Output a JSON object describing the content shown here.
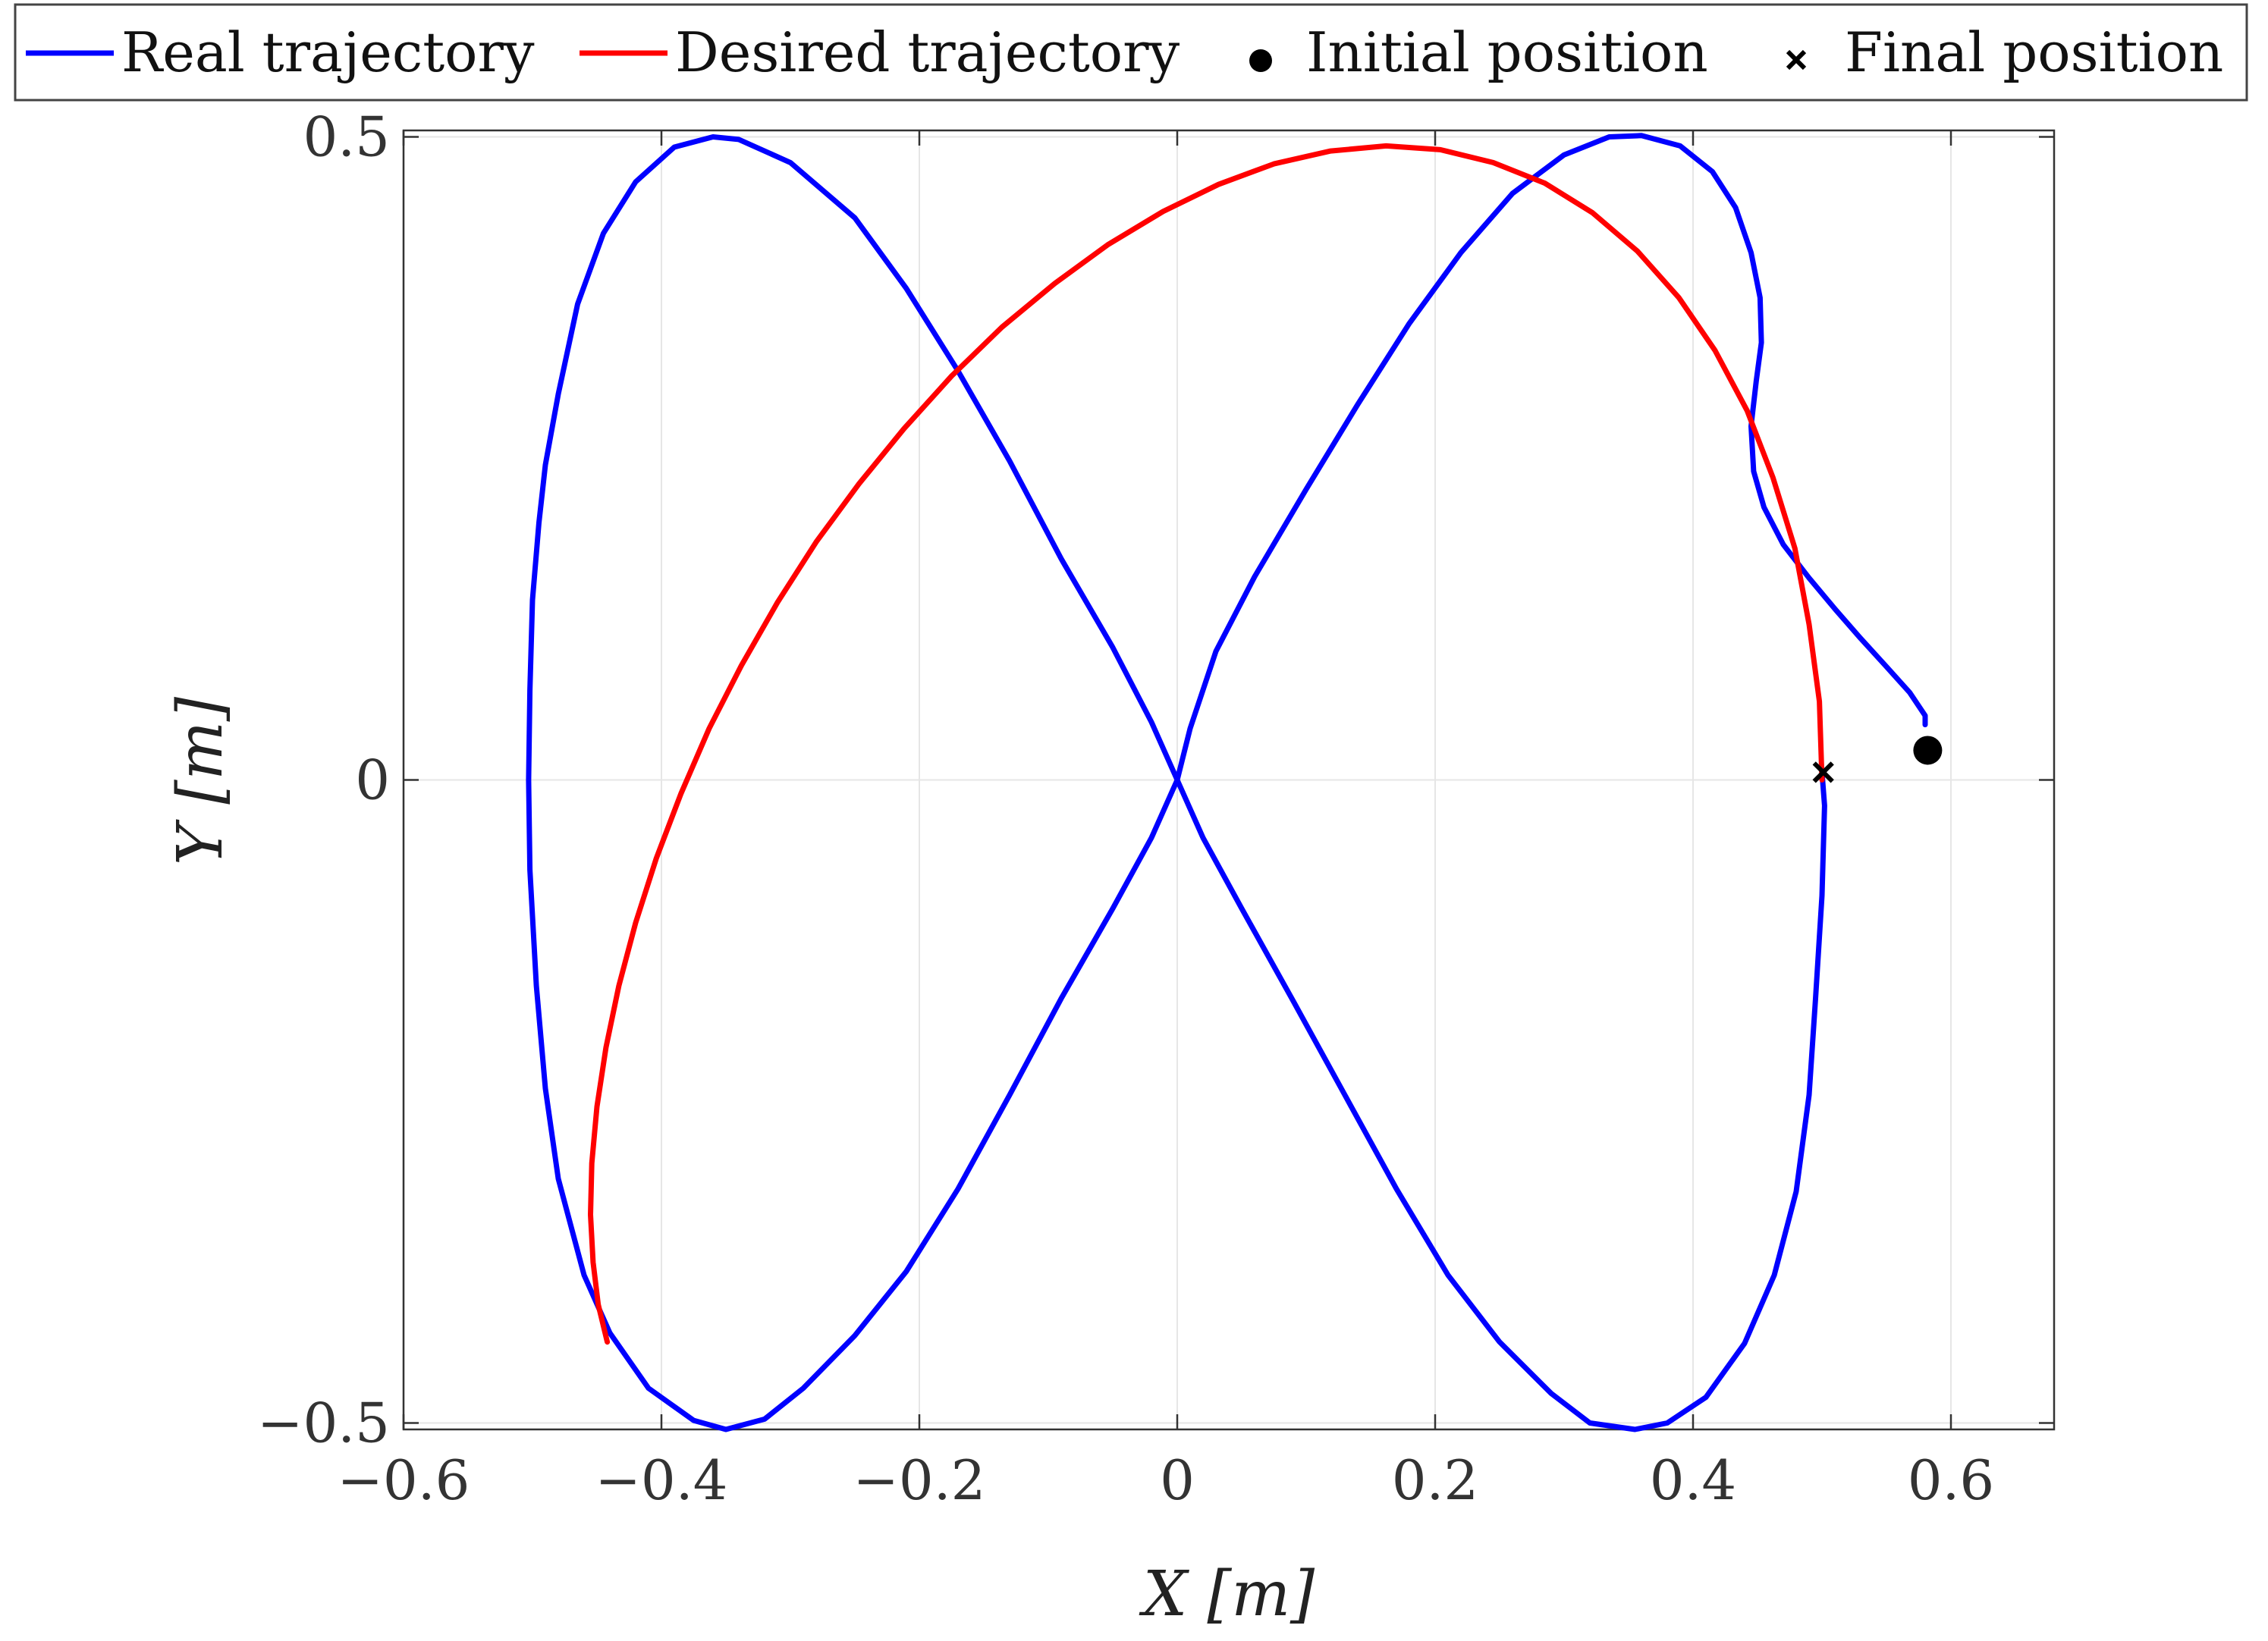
{
  "chart_data": {
    "type": "line",
    "title": "",
    "xlabel": "X [m]",
    "ylabel": "Y [m]",
    "xlim": [
      -0.6,
      0.68
    ],
    "ylim": [
      -0.505,
      0.505
    ],
    "xticks": [
      -0.6,
      -0.4,
      -0.2,
      0,
      0.2,
      0.4,
      0.6
    ],
    "xtick_labels": [
      "−0.6",
      "−0.4",
      "−0.2",
      "0",
      "0.2",
      "0.4",
      "0.6"
    ],
    "yticks": [
      -0.5,
      0,
      0.5
    ],
    "ytick_labels": [
      "−0.5",
      "0",
      "0.5"
    ],
    "grid": true,
    "legend_position": "top, horizontal, outside plot area",
    "legend": [
      {
        "label": "Real trajectory",
        "kind": "line",
        "color": "#0000ff"
      },
      {
        "label": "Desired trajectory",
        "kind": "line",
        "color": "#ff0000"
      },
      {
        "label": "Initial position",
        "kind": "dot",
        "color": "#000000"
      },
      {
        "label": "Final position",
        "kind": "cross",
        "color": "#000000"
      }
    ],
    "series": [
      {
        "name": "Real trajectory",
        "color": "#0000ff",
        "points": [
          [
            0.58,
            0.043
          ],
          [
            0.58,
            0.05
          ],
          [
            0.568,
            0.068
          ],
          [
            0.55,
            0.088
          ],
          [
            0.53,
            0.11
          ],
          [
            0.51,
            0.133
          ],
          [
            0.49,
            0.157
          ],
          [
            0.47,
            0.183
          ],
          [
            0.455,
            0.212
          ],
          [
            0.447,
            0.24
          ],
          [
            0.445,
            0.275
          ],
          [
            0.449,
            0.31
          ],
          [
            0.453,
            0.34
          ],
          [
            0.452,
            0.375
          ],
          [
            0.445,
            0.41
          ],
          [
            0.433,
            0.445
          ],
          [
            0.415,
            0.473
          ],
          [
            0.39,
            0.493
          ],
          [
            0.36,
            0.501
          ],
          [
            0.335,
            0.5
          ],
          [
            0.3,
            0.486
          ],
          [
            0.26,
            0.456
          ],
          [
            0.22,
            0.41
          ],
          [
            0.18,
            0.355
          ],
          [
            0.14,
            0.292
          ],
          [
            0.1,
            0.226
          ],
          [
            0.06,
            0.158
          ],
          [
            0.03,
            0.1
          ],
          [
            0.01,
            0.04
          ],
          [
            0.0,
            0.0
          ],
          [
            -0.02,
            -0.045
          ],
          [
            -0.05,
            -0.1
          ],
          [
            -0.09,
            -0.17
          ],
          [
            -0.13,
            -0.245
          ],
          [
            -0.17,
            -0.318
          ],
          [
            -0.21,
            -0.382
          ],
          [
            -0.25,
            -0.432
          ],
          [
            -0.29,
            -0.473
          ],
          [
            -0.32,
            -0.497
          ],
          [
            -0.35,
            -0.505
          ],
          [
            -0.375,
            -0.498
          ],
          [
            -0.41,
            -0.473
          ],
          [
            -0.44,
            -0.43
          ],
          [
            -0.46,
            -0.385
          ],
          [
            -0.48,
            -0.31
          ],
          [
            -0.49,
            -0.24
          ],
          [
            -0.497,
            -0.16
          ],
          [
            -0.502,
            -0.07
          ],
          [
            -0.503,
            0.0
          ],
          [
            -0.502,
            0.07
          ],
          [
            -0.5,
            0.14
          ],
          [
            -0.495,
            0.2
          ],
          [
            -0.49,
            0.245
          ],
          [
            -0.48,
            0.3
          ],
          [
            -0.465,
            0.37
          ],
          [
            -0.445,
            0.425
          ],
          [
            -0.42,
            0.465
          ],
          [
            -0.39,
            0.492
          ],
          [
            -0.36,
            0.5
          ],
          [
            -0.34,
            0.498
          ],
          [
            -0.3,
            0.48
          ],
          [
            -0.25,
            0.437
          ],
          [
            -0.21,
            0.382
          ],
          [
            -0.17,
            0.318
          ],
          [
            -0.13,
            0.248
          ],
          [
            -0.09,
            0.172
          ],
          [
            -0.05,
            0.103
          ],
          [
            -0.02,
            0.045
          ],
          [
            0.0,
            0.0
          ],
          [
            0.02,
            -0.045
          ],
          [
            0.05,
            -0.1
          ],
          [
            0.09,
            -0.172
          ],
          [
            0.13,
            -0.245
          ],
          [
            0.17,
            -0.318
          ],
          [
            0.21,
            -0.385
          ],
          [
            0.25,
            -0.437
          ],
          [
            0.29,
            -0.477
          ],
          [
            0.32,
            -0.5
          ],
          [
            0.355,
            -0.505
          ],
          [
            0.38,
            -0.5
          ],
          [
            0.41,
            -0.48
          ],
          [
            0.44,
            -0.438
          ],
          [
            0.463,
            -0.385
          ],
          [
            0.48,
            -0.32
          ],
          [
            0.49,
            -0.245
          ],
          [
            0.495,
            -0.17
          ],
          [
            0.5,
            -0.09
          ],
          [
            0.502,
            -0.02
          ],
          [
            0.5,
            0.006
          ]
        ]
      },
      {
        "name": "Desired trajectory",
        "color": "#ff0000",
        "points": [
          [
            0.5,
            0.0
          ],
          [
            0.498,
            0.061
          ],
          [
            0.49,
            0.121
          ],
          [
            0.479,
            0.18
          ],
          [
            0.462,
            0.235
          ],
          [
            0.442,
            0.287
          ],
          [
            0.417,
            0.334
          ],
          [
            0.389,
            0.375
          ],
          [
            0.357,
            0.411
          ],
          [
            0.322,
            0.441
          ],
          [
            0.285,
            0.464
          ],
          [
            0.245,
            0.48
          ],
          [
            0.204,
            0.49
          ],
          [
            0.162,
            0.493
          ],
          [
            0.119,
            0.489
          ],
          [
            0.075,
            0.479
          ],
          [
            0.032,
            0.463
          ],
          [
            -0.011,
            0.442
          ],
          [
            -0.054,
            0.416
          ],
          [
            -0.095,
            0.386
          ],
          [
            -0.136,
            0.352
          ],
          [
            -0.175,
            0.314
          ],
          [
            -0.212,
            0.273
          ],
          [
            -0.247,
            0.23
          ],
          [
            -0.28,
            0.185
          ],
          [
            -0.31,
            0.138
          ],
          [
            -0.338,
            0.089
          ],
          [
            -0.363,
            0.04
          ],
          [
            -0.385,
            -0.011
          ],
          [
            -0.404,
            -0.061
          ],
          [
            -0.42,
            -0.111
          ],
          [
            -0.433,
            -0.16
          ],
          [
            -0.443,
            -0.208
          ],
          [
            -0.45,
            -0.254
          ],
          [
            -0.454,
            -0.298
          ],
          [
            -0.455,
            -0.338
          ],
          [
            -0.453,
            -0.375
          ],
          [
            -0.449,
            -0.408
          ],
          [
            -0.442,
            -0.437
          ]
        ]
      }
    ],
    "markers": [
      {
        "name": "Initial position",
        "x": 0.582,
        "y": 0.023,
        "shape": "dot"
      },
      {
        "name": "Final position",
        "x": 0.501,
        "y": 0.006,
        "shape": "cross"
      }
    ]
  }
}
